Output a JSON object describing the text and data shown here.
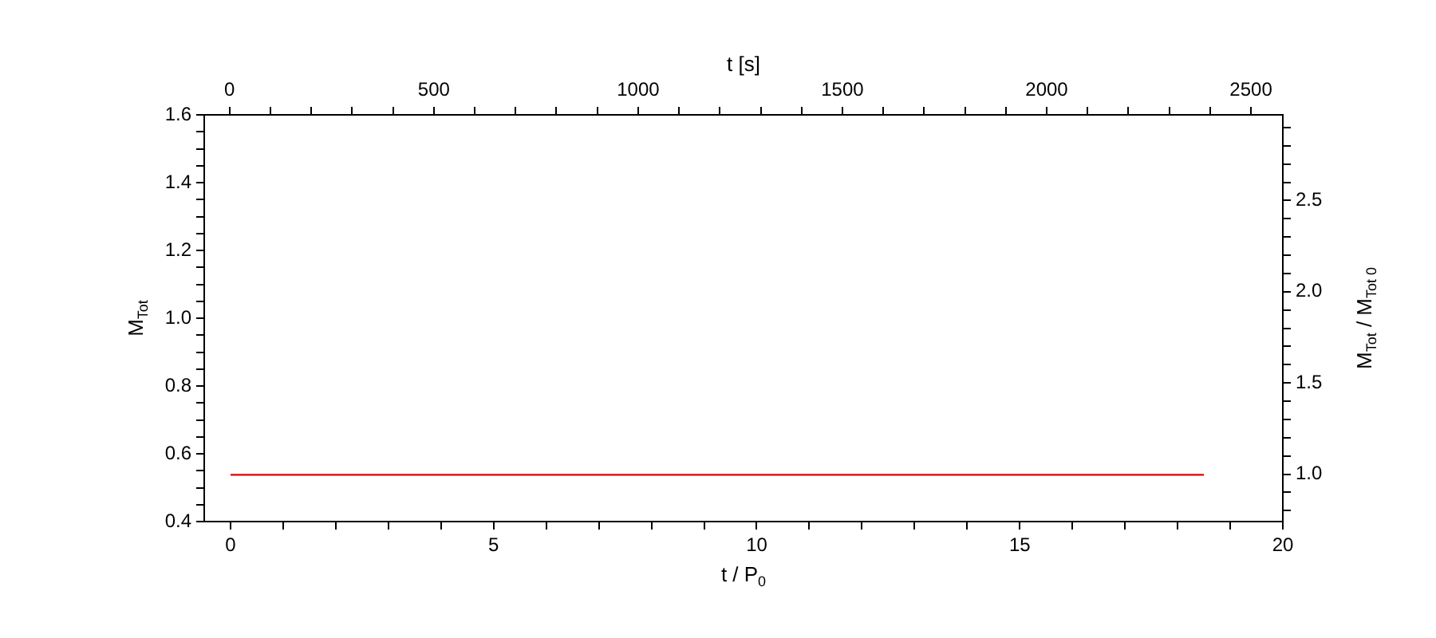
{
  "chart_data": {
    "type": "line",
    "xlabel": "t / P$_{0}$",
    "ylabel": "M$_{Tot}$",
    "x2label": "t [s]",
    "y2label": "M$_{Tot}$ / M$_{Tot 0}$",
    "series": [
      {
        "color": "#e00000",
        "x": [
          0,
          18.5
        ],
        "values": [
          0.538,
          0.538
        ]
      }
    ],
    "marker": "none",
    "line_style": "solid",
    "grid": false,
    "legend": false,
    "xlim": [
      -0.5,
      20
    ],
    "xticks": [
      0,
      {
        "value": 1,
        "label": null
      },
      {
        "value": 2,
        "label": null
      },
      {
        "value": 3,
        "label": null
      },
      {
        "value": 4,
        "label": null
      },
      5,
      {
        "value": 6,
        "label": null
      },
      {
        "value": 7,
        "label": null
      },
      {
        "value": 8,
        "label": null
      },
      {
        "value": 9,
        "label": null
      },
      10,
      {
        "value": 11,
        "label": null
      },
      {
        "value": 12,
        "label": null
      },
      {
        "value": 13,
        "label": null
      },
      {
        "value": 14,
        "label": null
      },
      15,
      {
        "value": 16,
        "label": null
      },
      {
        "value": 17,
        "label": null
      },
      {
        "value": 18,
        "label": null
      },
      {
        "value": 19,
        "label": null
      },
      20
    ],
    "x2lim": [
      -62,
      2578
    ],
    "x2ticks": [
      0,
      {
        "value": 100,
        "label": null
      },
      {
        "value": 200,
        "label": null
      },
      {
        "value": 300,
        "label": null
      },
      {
        "value": 400,
        "label": null
      },
      500,
      {
        "value": 600,
        "label": null
      },
      {
        "value": 700,
        "label": null
      },
      {
        "value": 800,
        "label": null
      },
      {
        "value": 900,
        "label": null
      },
      1000,
      {
        "value": 1100,
        "label": null
      },
      {
        "value": 1200,
        "label": null
      },
      {
        "value": 1300,
        "label": null
      },
      {
        "value": 1400,
        "label": null
      },
      1500,
      {
        "value": 1600,
        "label": null
      },
      {
        "value": 1700,
        "label": null
      },
      {
        "value": 1800,
        "label": null
      },
      {
        "value": 1900,
        "label": null
      },
      2000,
      {
        "value": 2100,
        "label": null
      },
      {
        "value": 2200,
        "label": null
      },
      {
        "value": 2300,
        "label": null
      },
      {
        "value": 2400,
        "label": null
      },
      2500
    ],
    "ylim": [
      0.4,
      1.6
    ],
    "yticks": [
      {
        "value": 0.4,
        "label": "0.4"
      },
      {
        "value": 0.45,
        "label": null
      },
      {
        "value": 0.5,
        "label": null
      },
      {
        "value": 0.55,
        "label": null
      },
      {
        "value": 0.6,
        "label": "0.6"
      },
      {
        "value": 0.65,
        "label": null
      },
      {
        "value": 0.7,
        "label": null
      },
      {
        "value": 0.75,
        "label": null
      },
      {
        "value": 0.8,
        "label": "0.8"
      },
      {
        "value": 0.85,
        "label": null
      },
      {
        "value": 0.9,
        "label": null
      },
      {
        "value": 0.95,
        "label": null
      },
      {
        "value": 1.0,
        "label": "1.0"
      },
      {
        "value": 1.05,
        "label": null
      },
      {
        "value": 1.1,
        "label": null
      },
      {
        "value": 1.15,
        "label": null
      },
      {
        "value": 1.2,
        "label": "1.2"
      },
      {
        "value": 1.25,
        "label": null
      },
      {
        "value": 1.3,
        "label": null
      },
      {
        "value": 1.35,
        "label": null
      },
      {
        "value": 1.4,
        "label": "1.4"
      },
      {
        "value": 1.45,
        "label": null
      },
      {
        "value": 1.5,
        "label": null
      },
      {
        "value": 1.55,
        "label": null
      },
      {
        "value": 1.6,
        "label": "1.6"
      }
    ],
    "y2lim": [
      0.74,
      2.97
    ],
    "y2ticks": [
      {
        "value": 0.8,
        "label": null
      },
      {
        "value": 0.9,
        "label": null
      },
      {
        "value": 1.0,
        "label": "1.0"
      },
      {
        "value": 1.1,
        "label": null
      },
      {
        "value": 1.2,
        "label": null
      },
      {
        "value": 1.3,
        "label": null
      },
      {
        "value": 1.4,
        "label": null
      },
      {
        "value": 1.5,
        "label": "1.5"
      },
      {
        "value": 1.6,
        "label": null
      },
      {
        "value": 1.7,
        "label": null
      },
      {
        "value": 1.8,
        "label": null
      },
      {
        "value": 1.9,
        "label": null
      },
      {
        "value": 2.0,
        "label": "2.0"
      },
      {
        "value": 2.1,
        "label": null
      },
      {
        "value": 2.2,
        "label": null
      },
      {
        "value": 2.3,
        "label": null
      },
      {
        "value": 2.4,
        "label": null
      },
      {
        "value": 2.5,
        "label": "2.5"
      },
      {
        "value": 2.6,
        "label": null
      },
      {
        "value": 2.7,
        "label": null
      },
      {
        "value": 2.8,
        "label": null
      },
      {
        "value": 2.9,
        "label": null
      }
    ]
  }
}
